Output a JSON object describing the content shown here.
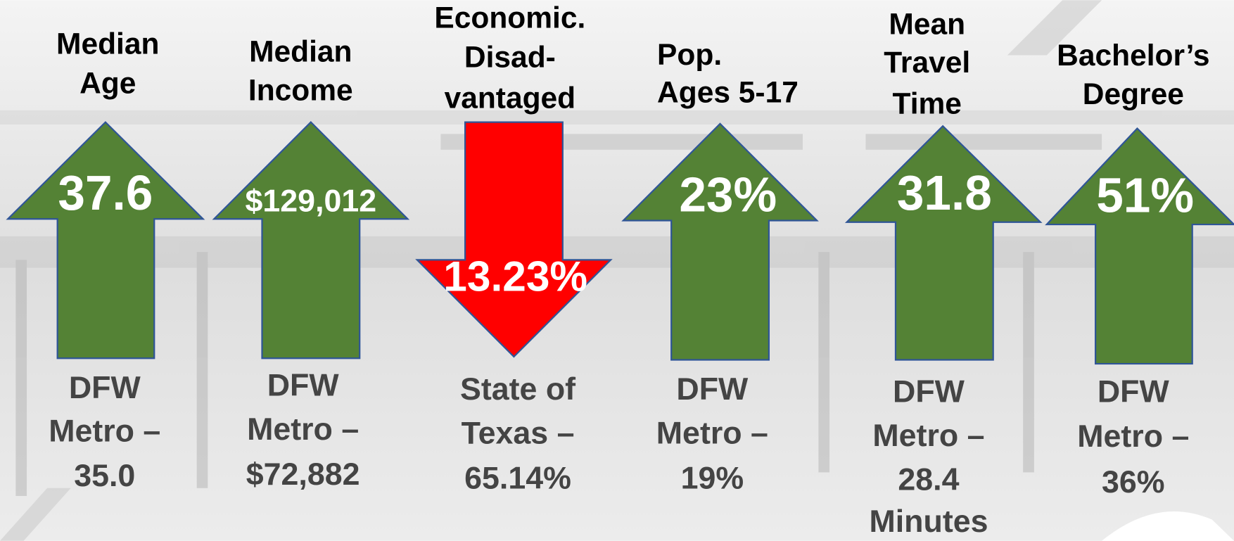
{
  "items": [
    {
      "title": [
        "Median",
        "Age"
      ],
      "value": "37.6",
      "comparison": [
        "DFW",
        "Metro –",
        "35.0"
      ]
    },
    {
      "title": [
        "Median",
        "Income"
      ],
      "value": "$129,012",
      "comparison": [
        "DFW",
        "Metro –",
        "$72,882"
      ]
    },
    {
      "title": [
        "Economic.",
        "Disad-",
        "vantaged"
      ],
      "value": "13.23%",
      "comparison": [
        "State of",
        "Texas –",
        "65.14%"
      ]
    },
    {
      "title": [
        "Pop.",
        "Ages 5-17"
      ],
      "value": "23%",
      "comparison": [
        "DFW",
        "Metro –",
        "19%"
      ]
    },
    {
      "title": [
        "Mean",
        "Travel",
        "Time"
      ],
      "value": "31.8",
      "comparison": [
        "DFW",
        "Metro –",
        "28.4",
        "Minutes"
      ]
    },
    {
      "title": [
        "Bachelor’s",
        "Degree"
      ],
      "value": "51%",
      "comparison": [
        "DFW",
        "Metro –",
        "36%"
      ]
    }
  ]
}
